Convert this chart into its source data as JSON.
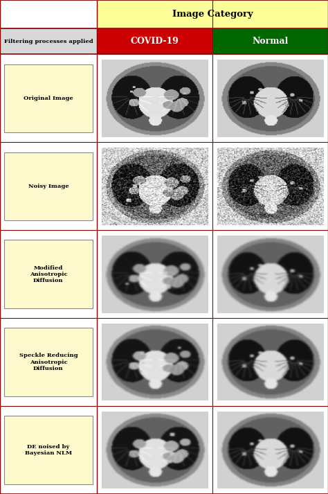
{
  "title": "Image Category",
  "header_bg": "#FFFF99",
  "header_text_color": "#000000",
  "col1_header": "Filtering processes applied",
  "col1_header_bg": "#D8D8D8",
  "covid_label": "COVID-19",
  "covid_bg": "#CC0000",
  "covid_text": "#FFFFFF",
  "normal_label": "Normal",
  "normal_bg": "#006600",
  "normal_text": "#FFFFFF",
  "row_labels": [
    "Original Image",
    "Noisy Image",
    "Modified\nAnisotropic\nDiffusion",
    "Speckle Reducing\nAnisotropic\nDiffusion",
    "DE noised by\nBayesian NLM"
  ],
  "row_label_bg": "#FFFACD",
  "row_label_border": "#888888",
  "divider_color": "#8B0000",
  "outer_border": "#888888",
  "bg_color": "#FFFFFF",
  "n_rows": 5,
  "figsize": [
    4.74,
    7.13
  ],
  "dpi": 100
}
